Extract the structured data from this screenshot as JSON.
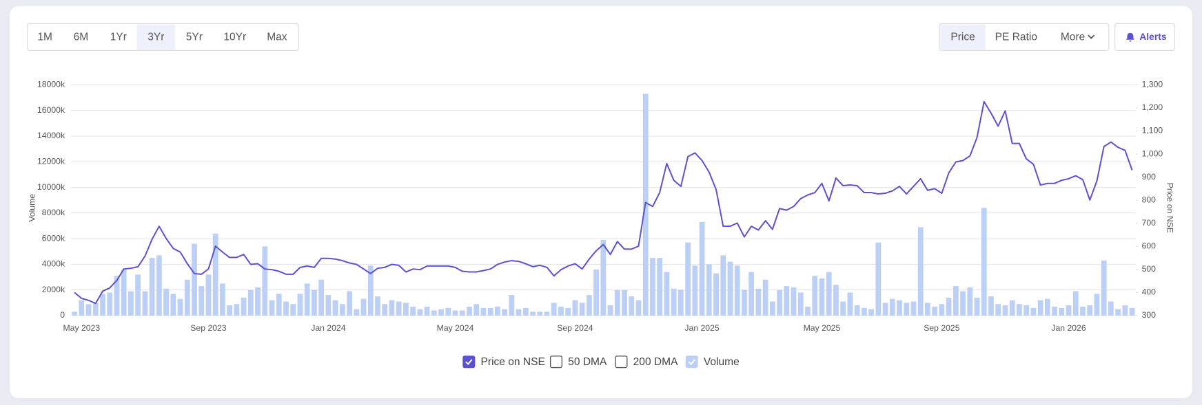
{
  "toolbar": {
    "ranges": [
      "1M",
      "6M",
      "1Yr",
      "3Yr",
      "5Yr",
      "10Yr",
      "Max"
    ],
    "active_range": "3Yr",
    "views": [
      "Price",
      "PE Ratio",
      "More"
    ],
    "active_view": "Price",
    "alerts": "Alerts"
  },
  "chart_data": {
    "type": "combo",
    "ylabel": "Volume",
    "y2label": "Price on NSE",
    "ylim": [
      0,
      18000
    ],
    "yticks": [
      0,
      {
        "value": 2000,
        "label": "2000k"
      },
      {
        "value": 4000,
        "label": "4000k"
      },
      {
        "value": 6000,
        "label": "6000k"
      },
      {
        "value": 8000,
        "label": "8000k"
      },
      {
        "value": 10000,
        "label": "10000k"
      },
      {
        "value": 12000,
        "label": "12000k"
      },
      {
        "value": 14000,
        "label": "14000k"
      },
      {
        "value": 16000,
        "label": "16000k"
      },
      {
        "value": 18000,
        "label": "18000k"
      }
    ],
    "y2lim": [
      300,
      1300
    ],
    "y2ticks": [
      300,
      400,
      500,
      600,
      700,
      800,
      900,
      {
        "value": 1000,
        "label": "1,000"
      },
      {
        "value": 1100,
        "label": "1,100"
      },
      {
        "value": 1200,
        "label": "1,200"
      },
      {
        "value": 1300,
        "label": "1,300"
      }
    ],
    "grid": true,
    "categories": [
      null,
      "May 2023",
      null,
      null,
      null,
      null,
      null,
      null,
      null,
      null,
      null,
      null,
      null,
      null,
      null,
      null,
      null,
      null,
      null,
      "Sep 2023",
      null,
      null,
      null,
      null,
      null,
      null,
      null,
      null,
      null,
      null,
      null,
      null,
      null,
      null,
      null,
      null,
      "Jan 2024",
      null,
      null,
      null,
      null,
      null,
      null,
      null,
      null,
      null,
      null,
      null,
      null,
      null,
      null,
      null,
      null,
      null,
      "May 2024",
      null,
      null,
      null,
      null,
      null,
      null,
      null,
      null,
      null,
      null,
      null,
      null,
      null,
      null,
      null,
      null,
      "Sep 2024",
      null,
      null,
      null,
      null,
      null,
      null,
      null,
      null,
      null,
      null,
      null,
      null,
      null,
      null,
      null,
      null,
      null,
      "Jan 2025",
      null,
      null,
      null,
      null,
      null,
      null,
      null,
      null,
      null,
      null,
      null,
      null,
      null,
      null,
      null,
      null,
      "May 2025",
      null,
      null,
      null,
      null,
      null,
      null,
      null,
      null,
      null,
      null,
      null,
      null,
      null,
      null,
      null,
      null,
      "Sep 2025",
      null,
      null,
      null,
      null,
      null,
      null,
      null,
      null,
      null,
      null,
      null,
      null,
      null,
      null,
      null,
      null,
      null,
      "Jan 2026",
      null,
      null,
      null,
      null,
      null,
      null,
      null,
      null,
      null
    ],
    "series": [
      {
        "name": "Price on NSE",
        "type": "line",
        "axis": "y2",
        "color": "#5b50d6",
        "visible": true,
        "values": [
          400,
          375,
          366,
          353,
          406,
          420,
          452,
          502,
          505,
          512,
          558,
          631,
          687,
          634,
          591,
          575,
          525,
          482,
          479,
          502,
          601,
          575,
          552,
          552,
          565,
          522,
          525,
          502,
          499,
          492,
          479,
          479,
          509,
          515,
          509,
          548,
          548,
          545,
          538,
          528,
          522,
          502,
          482,
          505,
          509,
          522,
          518,
          489,
          502,
          499,
          515,
          515,
          515,
          515,
          509,
          492,
          489,
          489,
          495,
          502,
          522,
          532,
          538,
          535,
          525,
          512,
          518,
          509,
          472,
          499,
          515,
          525,
          502,
          545,
          581,
          608,
          565,
          621,
          588,
          588,
          601,
          790,
          773,
          833,
          959,
          886,
          860,
          989,
          1005,
          972,
          922,
          846,
          687,
          687,
          701,
          641,
          687,
          671,
          711,
          674,
          764,
          757,
          773,
          807,
          823,
          833,
          873,
          797,
          896,
          863,
          866,
          863,
          833,
          833,
          827,
          830,
          840,
          860,
          827,
          860,
          893,
          843,
          850,
          830,
          919,
          966,
          972,
          992,
          1072,
          1227,
          1177,
          1121,
          1187,
          1046,
          1046,
          979,
          956,
          866,
          873,
          873,
          886,
          893,
          906,
          889,
          801,
          883,
          1032,
          1052,
          1029,
          1016,
          930
        ]
      },
      {
        "name": "50 DMA",
        "visible": false
      },
      {
        "name": "200 DMA",
        "visible": false
      },
      {
        "name": "Volume",
        "type": "bar",
        "axis": "y",
        "color": "#bcd0f7",
        "visible": true,
        "values": [
          300,
          1200,
          900,
          1000,
          1700,
          1800,
          3100,
          3600,
          1900,
          3200,
          1900,
          4500,
          4700,
          2100,
          1700,
          1300,
          2800,
          5600,
          2300,
          3200,
          6400,
          2500,
          800,
          900,
          1400,
          2000,
          2200,
          5400,
          1200,
          1700,
          1100,
          900,
          1700,
          2500,
          2000,
          2800,
          1600,
          1200,
          900,
          1900,
          500,
          1300,
          3900,
          1500,
          900,
          1200,
          1100,
          1000,
          700,
          500,
          700,
          400,
          500,
          600,
          400,
          400,
          700,
          900,
          600,
          600,
          700,
          500,
          1600,
          500,
          600,
          300,
          300,
          300,
          1000,
          700,
          600,
          1200,
          1000,
          1600,
          3600,
          5900,
          800,
          2000,
          2000,
          1500,
          1200,
          17300,
          4500,
          4500,
          3400,
          2100,
          2000,
          5700,
          3900,
          7300,
          4000,
          3300,
          4700,
          4200,
          3900,
          2000,
          3400,
          2100,
          2800,
          1100,
          2000,
          2300,
          2200,
          1800,
          700,
          3100,
          2900,
          3400,
          2400,
          1100,
          1800,
          800,
          600,
          500,
          5700,
          1000,
          1300,
          1200,
          1000,
          1100,
          6900,
          1000,
          700,
          900,
          1400,
          2300,
          1900,
          2200,
          1400,
          8400,
          1500,
          900,
          800,
          1200,
          900,
          800,
          600,
          1200,
          1300,
          700,
          600,
          800,
          1900,
          700,
          800,
          1700,
          4300,
          1100,
          500,
          800,
          600
        ]
      }
    ]
  }
}
